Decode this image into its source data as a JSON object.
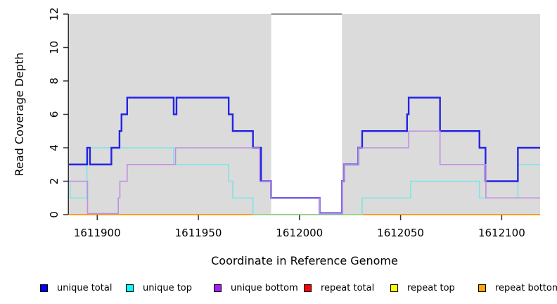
{
  "chart_data": {
    "type": "line",
    "subtype": "step-coverage-plot",
    "title": "",
    "xlabel": "Coordinate in Reference Genome",
    "ylabel": "Read Coverage Depth",
    "xlim": [
      1611886,
      1612119
    ],
    "ylim": [
      0,
      12
    ],
    "x_ticks": [
      1611900,
      1611950,
      1612000,
      1612050,
      1612100
    ],
    "y_ticks": [
      0,
      2,
      4,
      6,
      8,
      10,
      12
    ],
    "grid": "off",
    "legend_position": "bottom",
    "background_color": "#ffffff",
    "shaded_region_color": "#dbdbdb",
    "shaded_regions": [
      {
        "from": 1611886,
        "to": 1611986
      },
      {
        "from": 1612021,
        "to": 1612119
      }
    ],
    "gap_top_line": {
      "from": 1611986,
      "to": 1612021,
      "y": 12,
      "color": "#949494"
    },
    "zero_overlap_segment": {
      "from": 1611977,
      "to": 1612031,
      "y": 0,
      "color": "#90d890",
      "note": "pale green segment along zero line"
    },
    "series": [
      {
        "name": "repeat top",
        "legend_color": "#ffff00",
        "line_color": "#f2f200",
        "width": 1.2,
        "lift": 0,
        "points": [
          [
            1611886,
            0
          ]
        ],
        "end": 1612119
      },
      {
        "name": "repeat total",
        "legend_color": "#ff0000",
        "line_color": "#cc0000",
        "width": 1.2,
        "lift": 0,
        "points": [
          [
            1611886,
            0
          ]
        ],
        "end": 1612119
      },
      {
        "name": "repeat bottom",
        "legend_color": "#ffa500",
        "line_color": "#ff9d20",
        "width": 2,
        "lift": 0,
        "points": [
          [
            1611886,
            0
          ]
        ],
        "end": 1612119
      },
      {
        "name": "unique top",
        "legend_color": "#00ffff",
        "line_color": "#7ee4e8",
        "width": 1.6,
        "lift": 0,
        "points": [
          [
            1611886,
            2
          ],
          [
            1611886.6,
            1
          ],
          [
            1611894.9,
            4
          ],
          [
            1611937.8,
            3
          ],
          [
            1611965,
            2
          ],
          [
            1611967,
            1
          ],
          [
            1611977,
            0
          ],
          [
            1612031,
            1
          ],
          [
            1612055,
            2
          ],
          [
            1612089,
            1
          ],
          [
            1612108,
            3
          ]
        ],
        "end": 1612119
      },
      {
        "name": "unique total",
        "legend_color": "#0000ff",
        "line_color": "#2424e6",
        "width": 2.4,
        "lift": 2,
        "points": [
          [
            1611886,
            3
          ],
          [
            1611895,
            4
          ],
          [
            1611896.4,
            3
          ],
          [
            1611907,
            4
          ],
          [
            1611911,
            5
          ],
          [
            1611912,
            6
          ],
          [
            1611914.8,
            7
          ],
          [
            1611937.8,
            6
          ],
          [
            1611939.2,
            7
          ],
          [
            1611965,
            6
          ],
          [
            1611967,
            5
          ],
          [
            1611977,
            4
          ],
          [
            1611981,
            2
          ],
          [
            1611986,
            1
          ],
          [
            1612010,
            0
          ],
          [
            1612021,
            2
          ],
          [
            1612022,
            3
          ],
          [
            1612029,
            4
          ],
          [
            1612031,
            5
          ],
          [
            1612053.2,
            6
          ],
          [
            1612054,
            7
          ],
          [
            1612069.5,
            5
          ],
          [
            1612089,
            4
          ],
          [
            1612092,
            2
          ],
          [
            1612108,
            4
          ]
        ],
        "end": 1612119
      },
      {
        "name": "unique bottom",
        "legend_color": "#a020f0",
        "line_color": "#c08ee0",
        "width": 1.6,
        "lift": 1.5,
        "points": [
          [
            1611886,
            2
          ],
          [
            1611895.2,
            0
          ],
          [
            1611910.4,
            1
          ],
          [
            1611911.2,
            2
          ],
          [
            1611914.8,
            3
          ],
          [
            1611938.7,
            4
          ],
          [
            1611980.2,
            2
          ],
          [
            1611986,
            1
          ],
          [
            1612010,
            0
          ],
          [
            1612021,
            2
          ],
          [
            1612022,
            3
          ],
          [
            1612029,
            4
          ],
          [
            1612054,
            5
          ],
          [
            1612069.5,
            3
          ],
          [
            1612092.2,
            1
          ]
        ],
        "end": 1612119
      }
    ],
    "legend": [
      {
        "label": "unique total",
        "color": "#0000ff"
      },
      {
        "label": "unique top",
        "color": "#00ffff"
      },
      {
        "label": "unique bottom",
        "color": "#a020f0"
      },
      {
        "label": "repeat total",
        "color": "#ff0000"
      },
      {
        "label": "repeat top",
        "color": "#ffff00"
      },
      {
        "label": "repeat bottom",
        "color": "#ffa500"
      }
    ],
    "draw_order": [
      0,
      1,
      2,
      3,
      6,
      4,
      5
    ],
    "green_layer_index": 6
  },
  "layout_note_values": {
    "axis_color": "#333333"
  }
}
